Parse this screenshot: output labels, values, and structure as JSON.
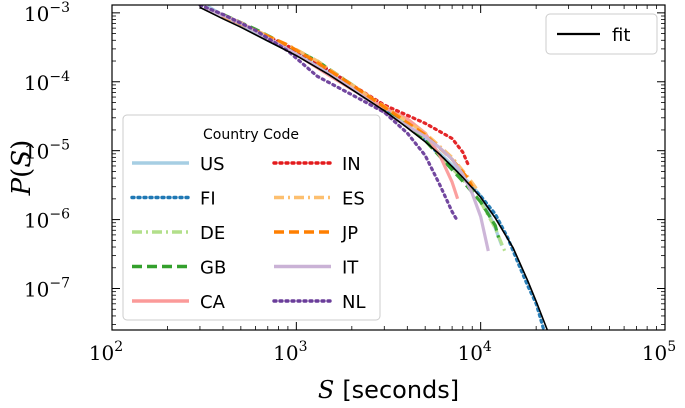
{
  "chart_data": {
    "type": "line",
    "xscale": "log",
    "yscale": "log",
    "xlim": [
      100,
      100000
    ],
    "ylim": [
      2.5e-08,
      0.0013
    ],
    "xlabel": {
      "symbol": "S",
      "unit": "[seconds]"
    },
    "ylabel": {
      "symbol": "P",
      "arg": "S"
    },
    "xticks": [
      {
        "value": 100,
        "base": "10",
        "exp": "2"
      },
      {
        "value": 1000,
        "base": "10",
        "exp": "3"
      },
      {
        "value": 10000,
        "base": "10",
        "exp": "4"
      },
      {
        "value": 100000,
        "base": "10",
        "exp": "5"
      }
    ],
    "yticks": [
      {
        "value": 1e-07,
        "base": "10",
        "exp": "−7"
      },
      {
        "value": 1e-06,
        "base": "10",
        "exp": "−6"
      },
      {
        "value": 1e-05,
        "base": "10",
        "exp": "−5"
      },
      {
        "value": 0.0001,
        "base": "10",
        "exp": "−4"
      },
      {
        "value": 0.001,
        "base": "10",
        "exp": "−3"
      }
    ],
    "legend": {
      "title": "Country Code",
      "placement": "lower-left"
    },
    "fit_legend": {
      "label": "fit",
      "placement": "upper-right"
    },
    "fit": {
      "name": "fit",
      "color": "#000000",
      "x": [
        300,
        400,
        500,
        700,
        1000,
        1500,
        2000,
        3000,
        4000,
        5000,
        6000,
        7000,
        8000,
        10000,
        12000,
        15000,
        18000,
        20000,
        23000
      ],
      "y": [
        0.0012,
        0.00082,
        0.00062,
        0.00039,
        0.00024,
        0.000127,
        7.7e-05,
        3.8e-05,
        2.15e-05,
        1.35e-05,
        8.8e-06,
        5.9e-06,
        4.1e-06,
        2.1e-06,
        1.05e-06,
        3.9e-07,
        1.3e-07,
        6.5e-08,
        2.5e-08
      ]
    },
    "series": [
      {
        "name": "US",
        "color": "#a6cee3",
        "dash": "solid",
        "x": [
          330,
          500,
          700,
          1000,
          1500,
          2000,
          3000,
          4000,
          5000,
          6000,
          7000,
          8000,
          9000,
          10000,
          11000,
          12000,
          13000
        ],
        "y": [
          0.00125,
          0.00065,
          0.0004,
          0.00025,
          0.000135,
          8e-05,
          4e-05,
          2.3e-05,
          1.4e-05,
          9.2e-06,
          6.2e-06,
          4.2e-06,
          3.1e-06,
          2.2e-06,
          1.3e-06,
          7.5e-07,
          4.2e-07
        ]
      },
      {
        "name": "FI",
        "color": "#1f78b4",
        "dash": "dotted",
        "x": [
          400,
          600,
          900,
          1300,
          2000,
          3000,
          5000,
          8000,
          10000,
          12000,
          14000,
          16000,
          18000,
          20000,
          22000
        ],
        "y": [
          0.0009,
          0.00055,
          0.00032,
          0.00019,
          9e-05,
          4.2e-05,
          1.4e-05,
          4e-06,
          2.2e-06,
          1.2e-06,
          5.5e-07,
          2.3e-07,
          1.1e-07,
          6e-08,
          2.5e-08
        ]
      },
      {
        "name": "DE",
        "color": "#b2df8a",
        "dash": "dashdot",
        "x": [
          400,
          600,
          900,
          1300,
          2000,
          3000,
          5000,
          8000,
          10000,
          12000,
          13500
        ],
        "y": [
          0.0009,
          0.00056,
          0.00034,
          0.0002,
          9.2e-05,
          4.3e-05,
          1.4e-05,
          3.8e-06,
          1.8e-06,
          7.5e-07,
          3.5e-07
        ]
      },
      {
        "name": "GB",
        "color": "#33a02c",
        "dash": "dashed",
        "x": [
          400,
          600,
          900,
          1300,
          2000,
          3000,
          5000,
          8000,
          10000,
          12000,
          12500
        ],
        "y": [
          0.00095,
          0.00058,
          0.00033,
          0.0002,
          9e-05,
          4.2e-05,
          1.4e-05,
          3.6e-06,
          1.8e-06,
          8.2e-07,
          5.5e-07
        ]
      },
      {
        "name": "CA",
        "color": "#fb9a99",
        "dash": "solid",
        "x": [
          330,
          500,
          700,
          1000,
          1500,
          2000,
          3000,
          4000,
          5000,
          6000,
          7000,
          7500
        ],
        "y": [
          0.00115,
          0.00072,
          0.00043,
          0.00025,
          0.000125,
          7.8e-05,
          4.2e-05,
          2.9e-05,
          1.8e-05,
          8.5e-06,
          3.5e-06,
          2e-06
        ]
      },
      {
        "name": "IN",
        "color": "#e31a1c",
        "dash": "dotted",
        "x": [
          400,
          600,
          900,
          1300,
          2000,
          3000,
          5000,
          6000,
          7000,
          8000,
          8500
        ],
        "y": [
          0.0009,
          0.00055,
          0.00033,
          0.00019,
          9e-05,
          4.6e-05,
          2.5e-05,
          1.9e-05,
          1.5e-05,
          9.5e-06,
          6.5e-06
        ]
      },
      {
        "name": "ES",
        "color": "#fdbf6f",
        "dash": "dashdot",
        "x": [
          400,
          600,
          900,
          1300,
          2000,
          3000,
          5000,
          7000,
          8500,
          9500
        ],
        "y": [
          0.0009,
          0.00056,
          0.00034,
          0.0002,
          9e-05,
          4.4e-05,
          1.8e-05,
          8e-06,
          4.2e-06,
          2.8e-06
        ]
      },
      {
        "name": "JP",
        "color": "#ff7f00",
        "dash": "dashed",
        "x": [
          400,
          600,
          900,
          1300,
          2000,
          3000,
          5000,
          7000,
          8500,
          9000
        ],
        "y": [
          0.0009,
          0.00055,
          0.00034,
          0.00019,
          9e-05,
          4.3e-05,
          1.7e-05,
          7.5e-06,
          4e-06,
          3e-06
        ]
      },
      {
        "name": "IT",
        "color": "#cab2d6",
        "dash": "solid",
        "x": [
          330,
          500,
          700,
          1000,
          1500,
          2000,
          3000,
          4000,
          5000,
          6000,
          7000,
          8000,
          9000,
          10000,
          11000
        ],
        "y": [
          0.00115,
          0.0007,
          0.00043,
          0.00025,
          0.00013,
          8e-05,
          3.6e-05,
          2.3e-05,
          1.6e-05,
          1.1e-05,
          7.5e-06,
          4.5e-06,
          2.4e-06,
          1.1e-06,
          3.5e-07
        ]
      },
      {
        "name": "NL",
        "color": "#6a3d9a",
        "dash": "dotted",
        "x": [
          300,
          400,
          600,
          900,
          1300,
          2000,
          3000,
          4000,
          5000,
          6000,
          7000,
          7500
        ],
        "y": [
          0.0013,
          0.00095,
          0.00056,
          0.00028,
          0.00012,
          6.5e-05,
          3.6e-05,
          1.8e-05,
          8.5e-06,
          3.2e-06,
          1.3e-06,
          9.5e-07
        ]
      }
    ]
  }
}
